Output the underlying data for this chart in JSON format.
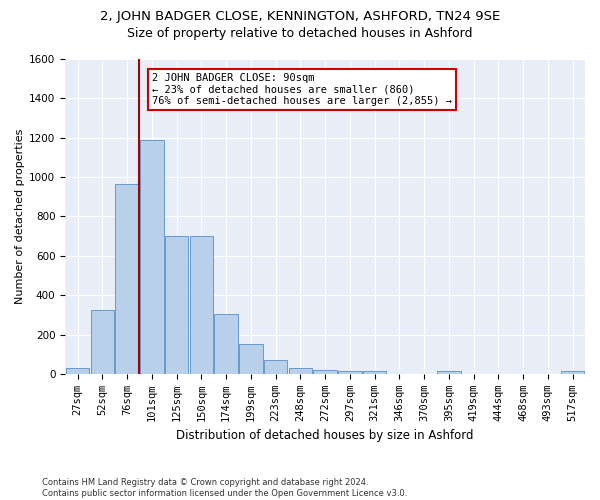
{
  "title": "2, JOHN BADGER CLOSE, KENNINGTON, ASHFORD, TN24 9SE",
  "subtitle": "Size of property relative to detached houses in Ashford",
  "xlabel": "Distribution of detached houses by size in Ashford",
  "ylabel": "Number of detached properties",
  "bar_color": "#b8d0ea",
  "bar_edge_color": "#6699cc",
  "background_color": "#e8eef8",
  "grid_color": "#ffffff",
  "categories": [
    "27sqm",
    "52sqm",
    "76sqm",
    "101sqm",
    "125sqm",
    "150sqm",
    "174sqm",
    "199sqm",
    "223sqm",
    "248sqm",
    "272sqm",
    "297sqm",
    "321sqm",
    "346sqm",
    "370sqm",
    "395sqm",
    "419sqm",
    "444sqm",
    "468sqm",
    "493sqm",
    "517sqm"
  ],
  "values": [
    30,
    325,
    965,
    1190,
    700,
    700,
    305,
    150,
    70,
    30,
    20,
    15,
    15,
    0,
    0,
    15,
    0,
    0,
    0,
    0,
    15
  ],
  "property_line_x": 2.5,
  "annotation_line1": "2 JOHN BADGER CLOSE: 90sqm",
  "annotation_line2": "← 23% of detached houses are smaller (860)",
  "annotation_line3": "76% of semi-detached houses are larger (2,855) →",
  "annotation_box_color": "#ffffff",
  "annotation_box_edge_color": "#cc0000",
  "vline_color": "#aa0000",
  "ylim": [
    0,
    1600
  ],
  "yticks": [
    0,
    200,
    400,
    600,
    800,
    1000,
    1200,
    1400,
    1600
  ],
  "footnote": "Contains HM Land Registry data © Crown copyright and database right 2024.\nContains public sector information licensed under the Open Government Licence v3.0.",
  "title_fontsize": 9.5,
  "subtitle_fontsize": 9,
  "ylabel_fontsize": 8,
  "xlabel_fontsize": 8.5,
  "tick_fontsize": 7.5,
  "annot_fontsize": 7.5
}
